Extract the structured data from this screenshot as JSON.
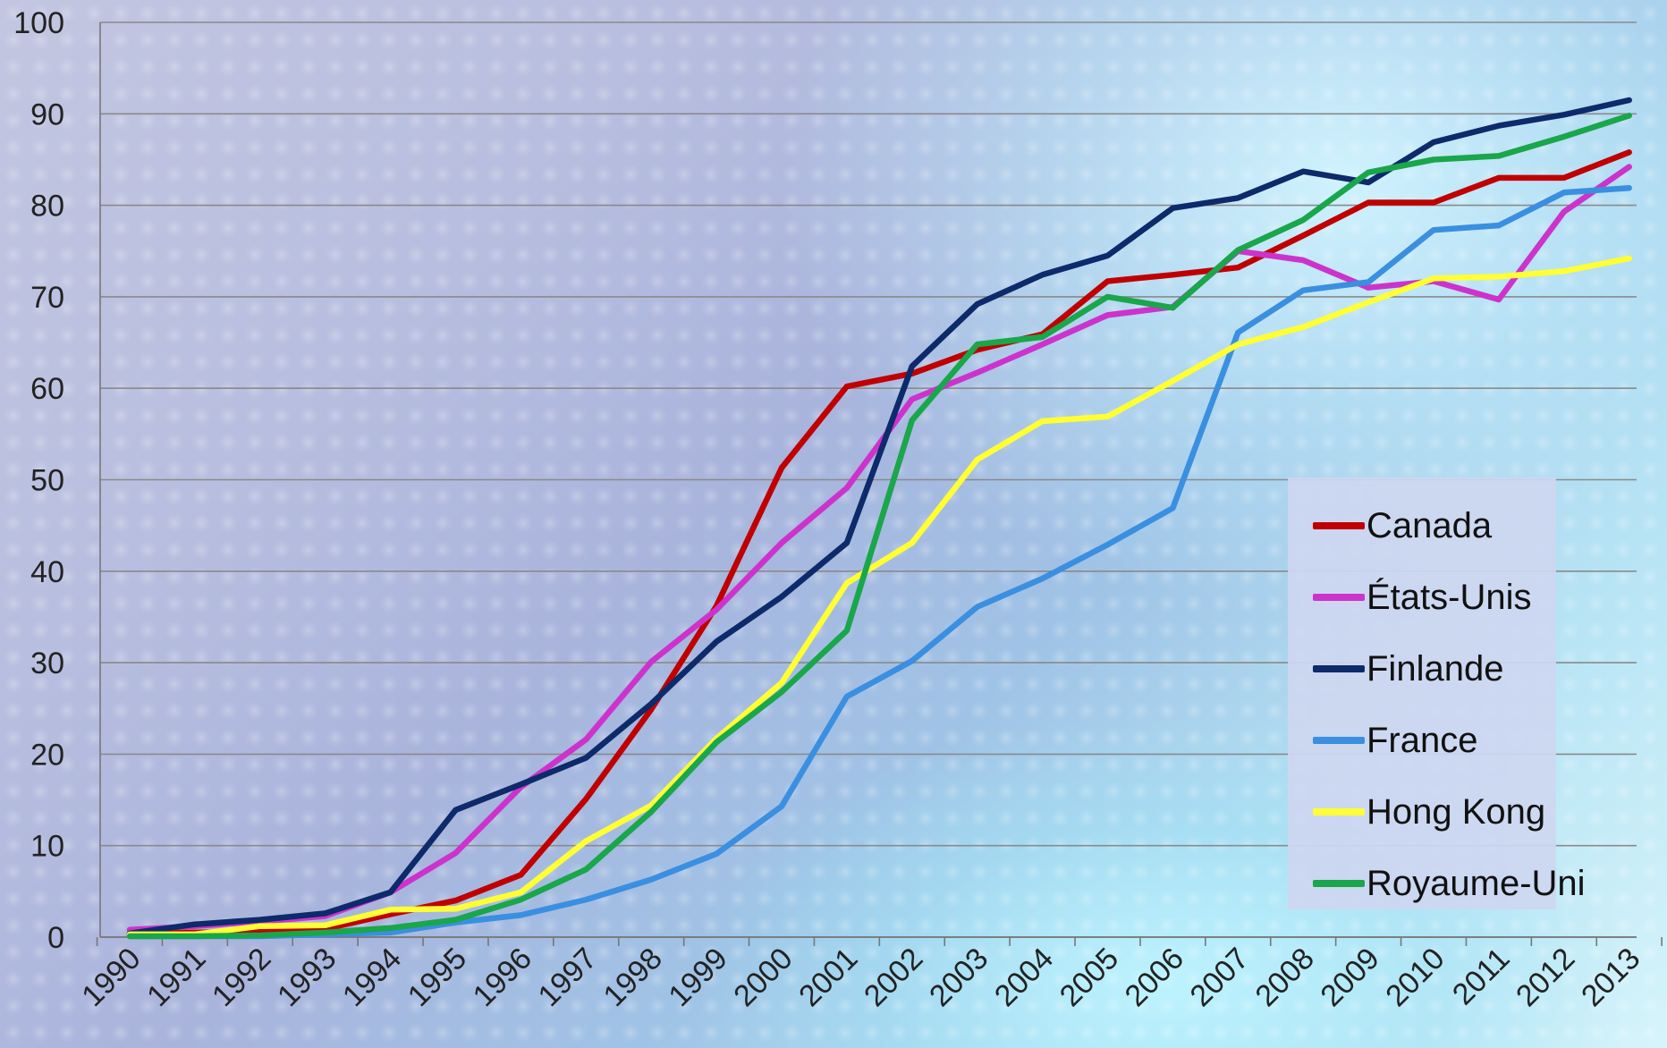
{
  "chart_data": {
    "type": "line",
    "title": "",
    "xlabel": "",
    "ylabel": "",
    "ylim": [
      0,
      100
    ],
    "yticks": [
      "0",
      "10",
      "20",
      "30",
      "40",
      "50",
      "60",
      "70",
      "80",
      "90",
      "100"
    ],
    "categories": [
      "1990",
      "1991",
      "1992",
      "1993",
      "1994",
      "1995",
      "1996",
      "1997",
      "1998",
      "1999",
      "2000",
      "2001",
      "2002",
      "2003",
      "2004",
      "2005",
      "2006",
      "2007",
      "2008",
      "2009",
      "2010",
      "2011",
      "2012",
      "2013"
    ],
    "grid": true,
    "legend": "right",
    "series": [
      {
        "name": "Canada",
        "color": "#c00000",
        "values": [
          0.4,
          0.5,
          0.6,
          0.9,
          2.5,
          4.0,
          6.8,
          15.1,
          24.9,
          36.2,
          51.3,
          60.2,
          61.6,
          64.2,
          65.9,
          71.7,
          72.4,
          73.2,
          76.7,
          80.3,
          80.3,
          83.0,
          83.0,
          85.8
        ]
      },
      {
        "name": "États-Unis",
        "color": "#cc33cc",
        "values": [
          0.8,
          1.2,
          1.7,
          2.3,
          4.9,
          9.2,
          16.4,
          21.6,
          30.1,
          35.8,
          43.1,
          49.1,
          58.8,
          61.7,
          64.8,
          68.0,
          68.9,
          75.0,
          74.0,
          71.0,
          71.7,
          69.7,
          79.3,
          84.2
        ]
      },
      {
        "name": "Finlande",
        "color": "#0d2a6b",
        "values": [
          0.4,
          1.4,
          1.9,
          2.6,
          4.9,
          13.9,
          16.7,
          19.6,
          25.5,
          32.3,
          37.2,
          43.1,
          62.4,
          69.2,
          72.4,
          74.5,
          79.7,
          80.8,
          83.7,
          82.5,
          86.9,
          88.7,
          89.9,
          91.5
        ]
      },
      {
        "name": "France",
        "color": "#3a8fe0",
        "values": [
          0.1,
          0.1,
          0.1,
          0.3,
          0.5,
          1.6,
          2.4,
          4.1,
          6.3,
          9.1,
          14.3,
          26.3,
          30.2,
          36.1,
          39.2,
          42.9,
          46.9,
          66.1,
          70.7,
          71.6,
          77.3,
          77.8,
          81.4,
          81.9
        ]
      },
      {
        "name": "Hong Kong",
        "color": "#ffff33",
        "values": [
          0.3,
          0.3,
          1.2,
          1.3,
          3.0,
          3.1,
          4.9,
          10.5,
          14.4,
          21.7,
          27.8,
          38.7,
          43.1,
          52.2,
          56.4,
          56.9,
          60.8,
          64.8,
          66.7,
          69.4,
          72.0,
          72.2,
          72.8,
          74.2
        ]
      },
      {
        "name": "Royaume-Uni",
        "color": "#1aa64a",
        "values": [
          0.1,
          0.1,
          0.2,
          0.5,
          1.0,
          1.9,
          4.1,
          7.4,
          13.7,
          21.3,
          26.8,
          33.5,
          56.5,
          64.8,
          65.6,
          70.0,
          68.8,
          75.1,
          78.4,
          83.6,
          85.0,
          85.4,
          87.5,
          89.8
        ]
      }
    ]
  }
}
